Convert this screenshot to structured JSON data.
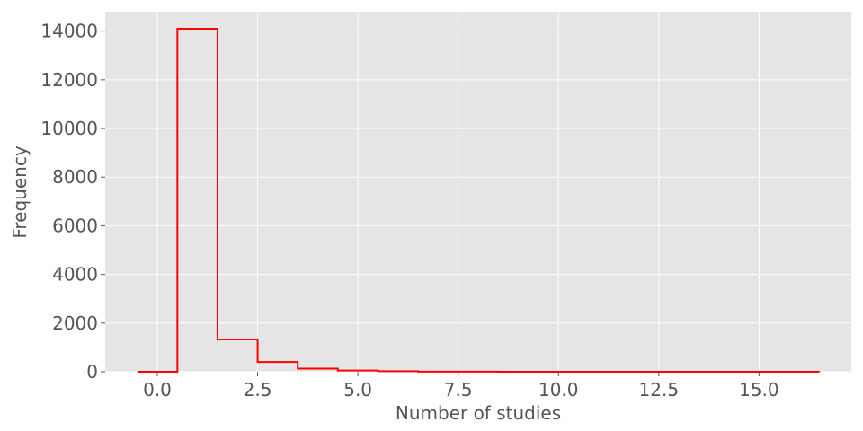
{
  "chart_data": {
    "type": "histogram-step",
    "title": "",
    "xlabel": "Number of studies",
    "ylabel": "Frequency",
    "xlim": [
      -1.3,
      17.3
    ],
    "ylim": [
      0,
      14800
    ],
    "x_ticks": [
      0.0,
      2.5,
      5.0,
      7.5,
      10.0,
      12.5,
      15.0
    ],
    "x_tick_labels": [
      "0.0",
      "2.5",
      "5.0",
      "7.5",
      "10.0",
      "12.5",
      "15.0"
    ],
    "y_ticks": [
      0,
      2000,
      4000,
      6000,
      8000,
      10000,
      12000,
      14000
    ],
    "y_tick_labels": [
      "0",
      "2000",
      "4000",
      "6000",
      "8000",
      "10000",
      "12000",
      "14000"
    ],
    "bin_edges": [
      -0.5,
      0.5,
      1.5,
      2.5,
      3.5,
      4.5,
      5.5,
      6.5,
      7.5,
      8.5,
      9.5,
      10.5,
      11.5,
      12.5,
      13.5,
      14.5,
      15.5,
      16.5
    ],
    "counts": [
      0,
      14100,
      1330,
      400,
      130,
      50,
      25,
      5,
      3,
      2,
      1,
      1,
      0,
      0,
      0,
      0,
      1
    ],
    "grid": true,
    "colors": {
      "background": "#e5e5e5",
      "grid": "#ffffff",
      "line": "#ff0000",
      "text": "#555555"
    }
  }
}
